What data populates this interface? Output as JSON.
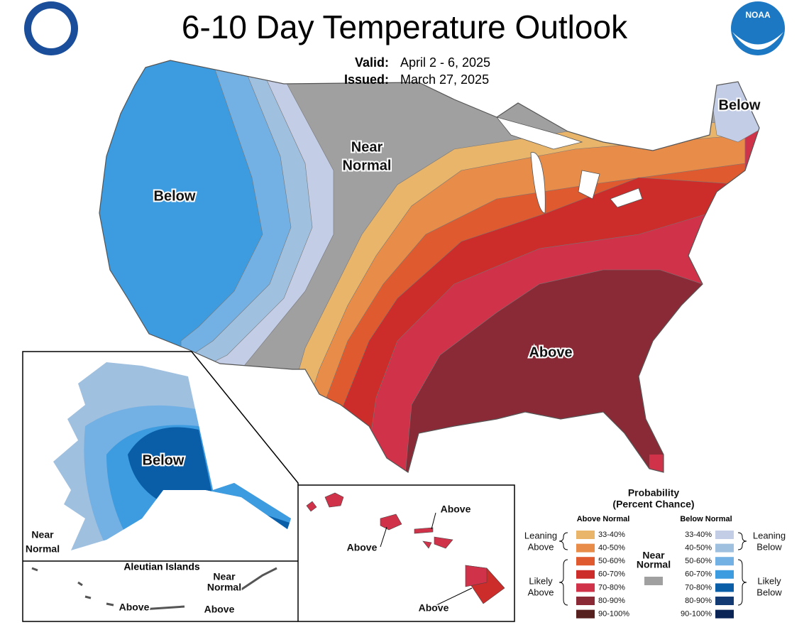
{
  "header": {
    "title": "6-10 Day Temperature Outlook",
    "valid_label": "Valid:",
    "valid": "April 2 - 6, 2025",
    "issued_label": "Issued:",
    "issued": "March 27, 2025",
    "logo": "NOAA"
  },
  "conus_labels": [
    {
      "lines": [
        "Below"
      ]
    },
    {
      "lines": [
        "Near",
        "Normal"
      ]
    },
    {
      "lines": [
        "Below"
      ]
    },
    {
      "lines": [
        "Above"
      ]
    }
  ],
  "alaska_labels": [
    {
      "lines": [
        "Below"
      ]
    },
    {
      "lines": [
        "Near",
        "Normal"
      ]
    }
  ],
  "aleutian": {
    "title": "Aleutian Islands",
    "labels": [
      {
        "lines": [
          "Near",
          "Normal"
        ]
      },
      {
        "lines": [
          "Above"
        ]
      },
      {
        "lines": [
          "Above"
        ]
      }
    ]
  },
  "hawaii_labels": [
    {
      "lines": [
        "Above"
      ]
    },
    {
      "lines": [
        "Above"
      ]
    },
    {
      "lines": [
        "Above"
      ]
    }
  ],
  "legend": {
    "title": [
      "Probability",
      "(Percent Chance)"
    ],
    "above_header": "Above Normal",
    "below_header": "Below Normal",
    "near_normal": {
      "lines": [
        "Near",
        "Normal"
      ],
      "color": "#a0a0a0"
    },
    "above": [
      {
        "label": "33-40%",
        "color": "#e9b56a"
      },
      {
        "label": "40-50%",
        "color": "#e88c4a"
      },
      {
        "label": "50-60%",
        "color": "#df5a2e"
      },
      {
        "label": "60-70%",
        "color": "#cc2c2a"
      },
      {
        "label": "70-80%",
        "color": "#d0324a"
      },
      {
        "label": "80-90%",
        "color": "#8a2a36"
      },
      {
        "label": "90-100%",
        "color": "#55201d"
      }
    ],
    "below": [
      {
        "label": "33-40%",
        "color": "#c4cde6"
      },
      {
        "label": "40-50%",
        "color": "#a0c0e0"
      },
      {
        "label": "50-60%",
        "color": "#73b0e3"
      },
      {
        "label": "60-70%",
        "color": "#3d9be0"
      },
      {
        "label": "70-80%",
        "color": "#0a5ea8"
      },
      {
        "label": "80-90%",
        "color": "#133a72"
      },
      {
        "label": "90-100%",
        "color": "#0b2456"
      }
    ],
    "groups": [
      {
        "lines": [
          "Leaning",
          "Above"
        ]
      },
      {
        "lines": [
          "Likely",
          "Above"
        ]
      },
      {
        "lines": [
          "Leaning",
          "Below"
        ]
      },
      {
        "lines": [
          "Likely",
          "Below"
        ]
      }
    ]
  }
}
